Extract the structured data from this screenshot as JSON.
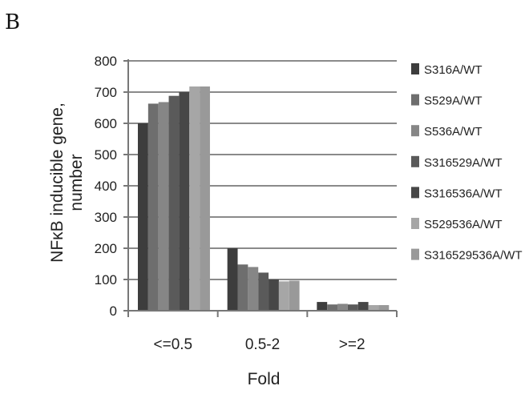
{
  "panel_label": "B",
  "chart_data": {
    "type": "bar",
    "categories": [
      "<=0.5",
      "0.5-2",
      ">=2"
    ],
    "series": [
      {
        "name": "S316A/WT",
        "color": "#3d3d3d",
        "values": [
          600,
          200,
          28
        ]
      },
      {
        "name": "S529A/WT",
        "color": "#6e6e6e",
        "values": [
          663,
          148,
          20
        ]
      },
      {
        "name": "S536A/WT",
        "color": "#868686",
        "values": [
          668,
          140,
          22
        ]
      },
      {
        "name": "S316529A/WT",
        "color": "#5a5a5a",
        "values": [
          688,
          122,
          20
        ]
      },
      {
        "name": "S316536A/WT",
        "color": "#474747",
        "values": [
          700,
          100,
          28
        ]
      },
      {
        "name": "S529536A/WT",
        "color": "#a6a6a6",
        "values": [
          718,
          94,
          18
        ]
      },
      {
        "name": "S316529536A/WT",
        "color": "#999999",
        "values": [
          718,
          96,
          18
        ]
      }
    ],
    "yticks": [
      "0",
      "100",
      "200",
      "300",
      "400",
      "500",
      "600",
      "700",
      "800"
    ],
    "ylim": [
      0,
      800
    ],
    "xlabel": "Fold",
    "ylabel_line1": "NFκB inducible gene,",
    "ylabel_line2": "number",
    "grid": true,
    "legend_position": "right"
  }
}
